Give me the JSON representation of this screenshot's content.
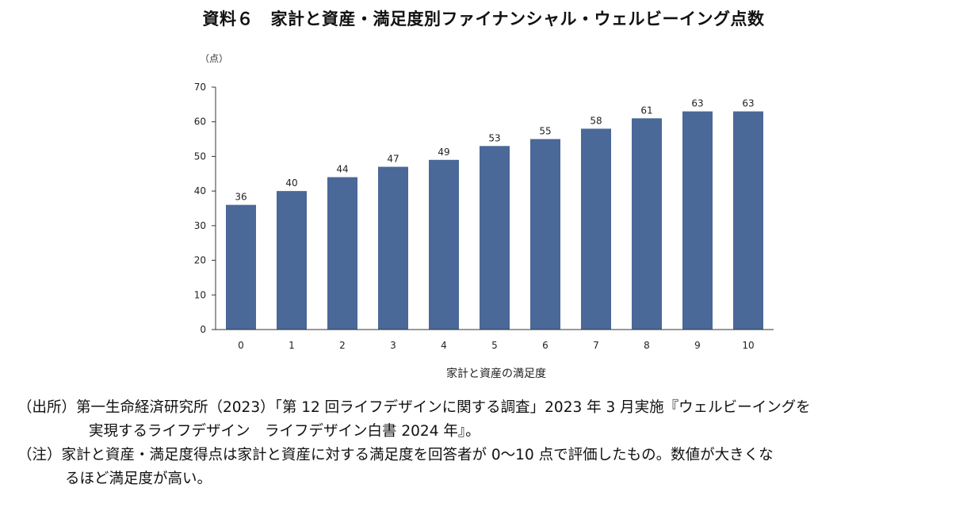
{
  "chart_data": {
    "type": "bar",
    "title": "資料６　家計と資産・満足度別ファイナンシャル・ウェルビーイング点数",
    "ylabel": "（点）",
    "xlabel": "家計と資産の満足度",
    "categories": [
      "0",
      "1",
      "2",
      "3",
      "4",
      "5",
      "6",
      "7",
      "8",
      "9",
      "10"
    ],
    "values": [
      36,
      40,
      44,
      47,
      49,
      53,
      55,
      58,
      61,
      63,
      63
    ],
    "data_labels": [
      "36",
      "40",
      "44",
      "47",
      "49",
      "53",
      "55",
      "58",
      "61",
      "63",
      "63"
    ],
    "ylim": [
      0,
      70
    ],
    "yticks": [
      0,
      10,
      20,
      30,
      40,
      50,
      60,
      70
    ],
    "grid": false,
    "bar_color": "#4a6898"
  },
  "notes": {
    "source_tag": "（出所）",
    "source_line1": "第一生命経済研究所（2023）「第 12 回ライフデザインに関する調査」2023 年 3 月実施『ウェルビーイングを",
    "source_line2": "実現するライフデザイン　ライフデザイン白書 2024 年』。",
    "note_tag": "（注）",
    "note_line1": "家計と資産・満足度得点は家計と資産に対する満足度を回答者が 0～10 点で評価したもの。数値が大きくな",
    "note_line2": "るほど満足度が高い。"
  }
}
